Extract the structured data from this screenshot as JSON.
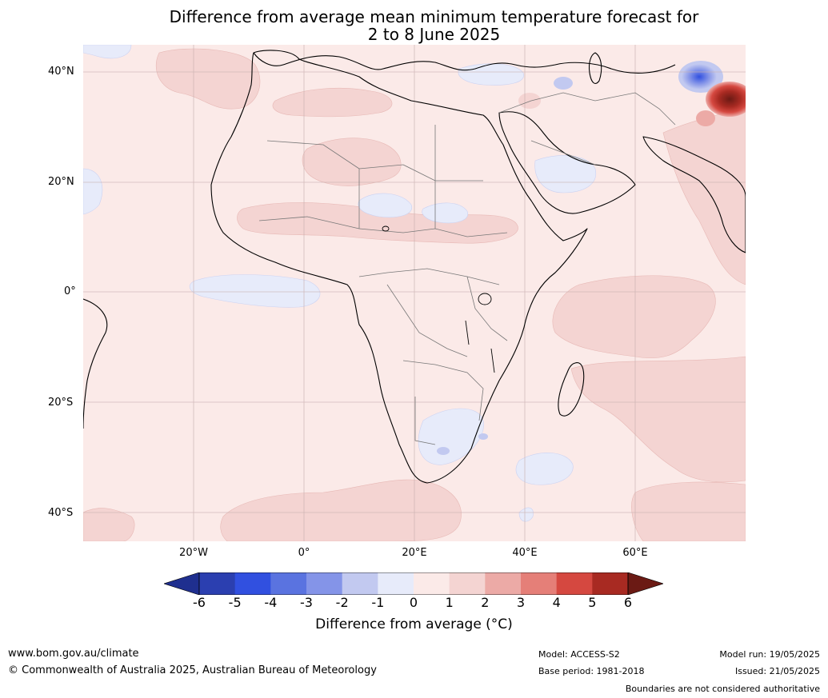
{
  "title": {
    "line1": "Difference from average mean minimum temperature forecast for",
    "line2": "2 to 8 June 2025"
  },
  "map": {
    "latitude_labels": [
      "40°N",
      "20°N",
      "0°",
      "20°S",
      "40°S"
    ],
    "longitude_labels": [
      "20°W",
      "0°",
      "20°E",
      "40°E",
      "60°E"
    ],
    "colors": {
      "ocean_background": "#fbeae8",
      "anomaly_plus_1_to_2": "#f4d4d2",
      "anomaly_minus_1_to_0": "#e7ebfa",
      "anomaly_minus_2_to_minus_1": "#c2c9f0",
      "anomaly_strong_warm": "#8b1a1a",
      "anomaly_strong_cool": "#5a6fe0",
      "coastline": "#000000",
      "borders": "#777777",
      "gridlines": "#c8b0b0"
    }
  },
  "colorbar": {
    "ticks": [
      "-6",
      "-5",
      "-4",
      "-3",
      "-2",
      "-1",
      "0",
      "1",
      "2",
      "3",
      "4",
      "5",
      "6"
    ],
    "bin_colors": [
      "#1f2f8f",
      "#2b3fb0",
      "#3150e0",
      "#5a73e0",
      "#8494e8",
      "#c2c9f0",
      "#e7ebfa",
      "#fbeae8",
      "#f4d4d2",
      "#ecaaa6",
      "#e57f78",
      "#d54840",
      "#a82a22",
      "#6b1a14"
    ],
    "label": "Difference from average (°C)"
  },
  "footer": {
    "website": "www.bom.gov.au/climate",
    "copyright": "© Commonwealth of Australia 2025, Australian Bureau of Meteorology",
    "model": "Model: ACCESS-S2",
    "base_period": "Base period: 1981-2018",
    "model_run": "Model run: 19/05/2025",
    "issued": "Issued: 21/05/2025",
    "disclaimer": "Boundaries are not considered authoritative"
  }
}
